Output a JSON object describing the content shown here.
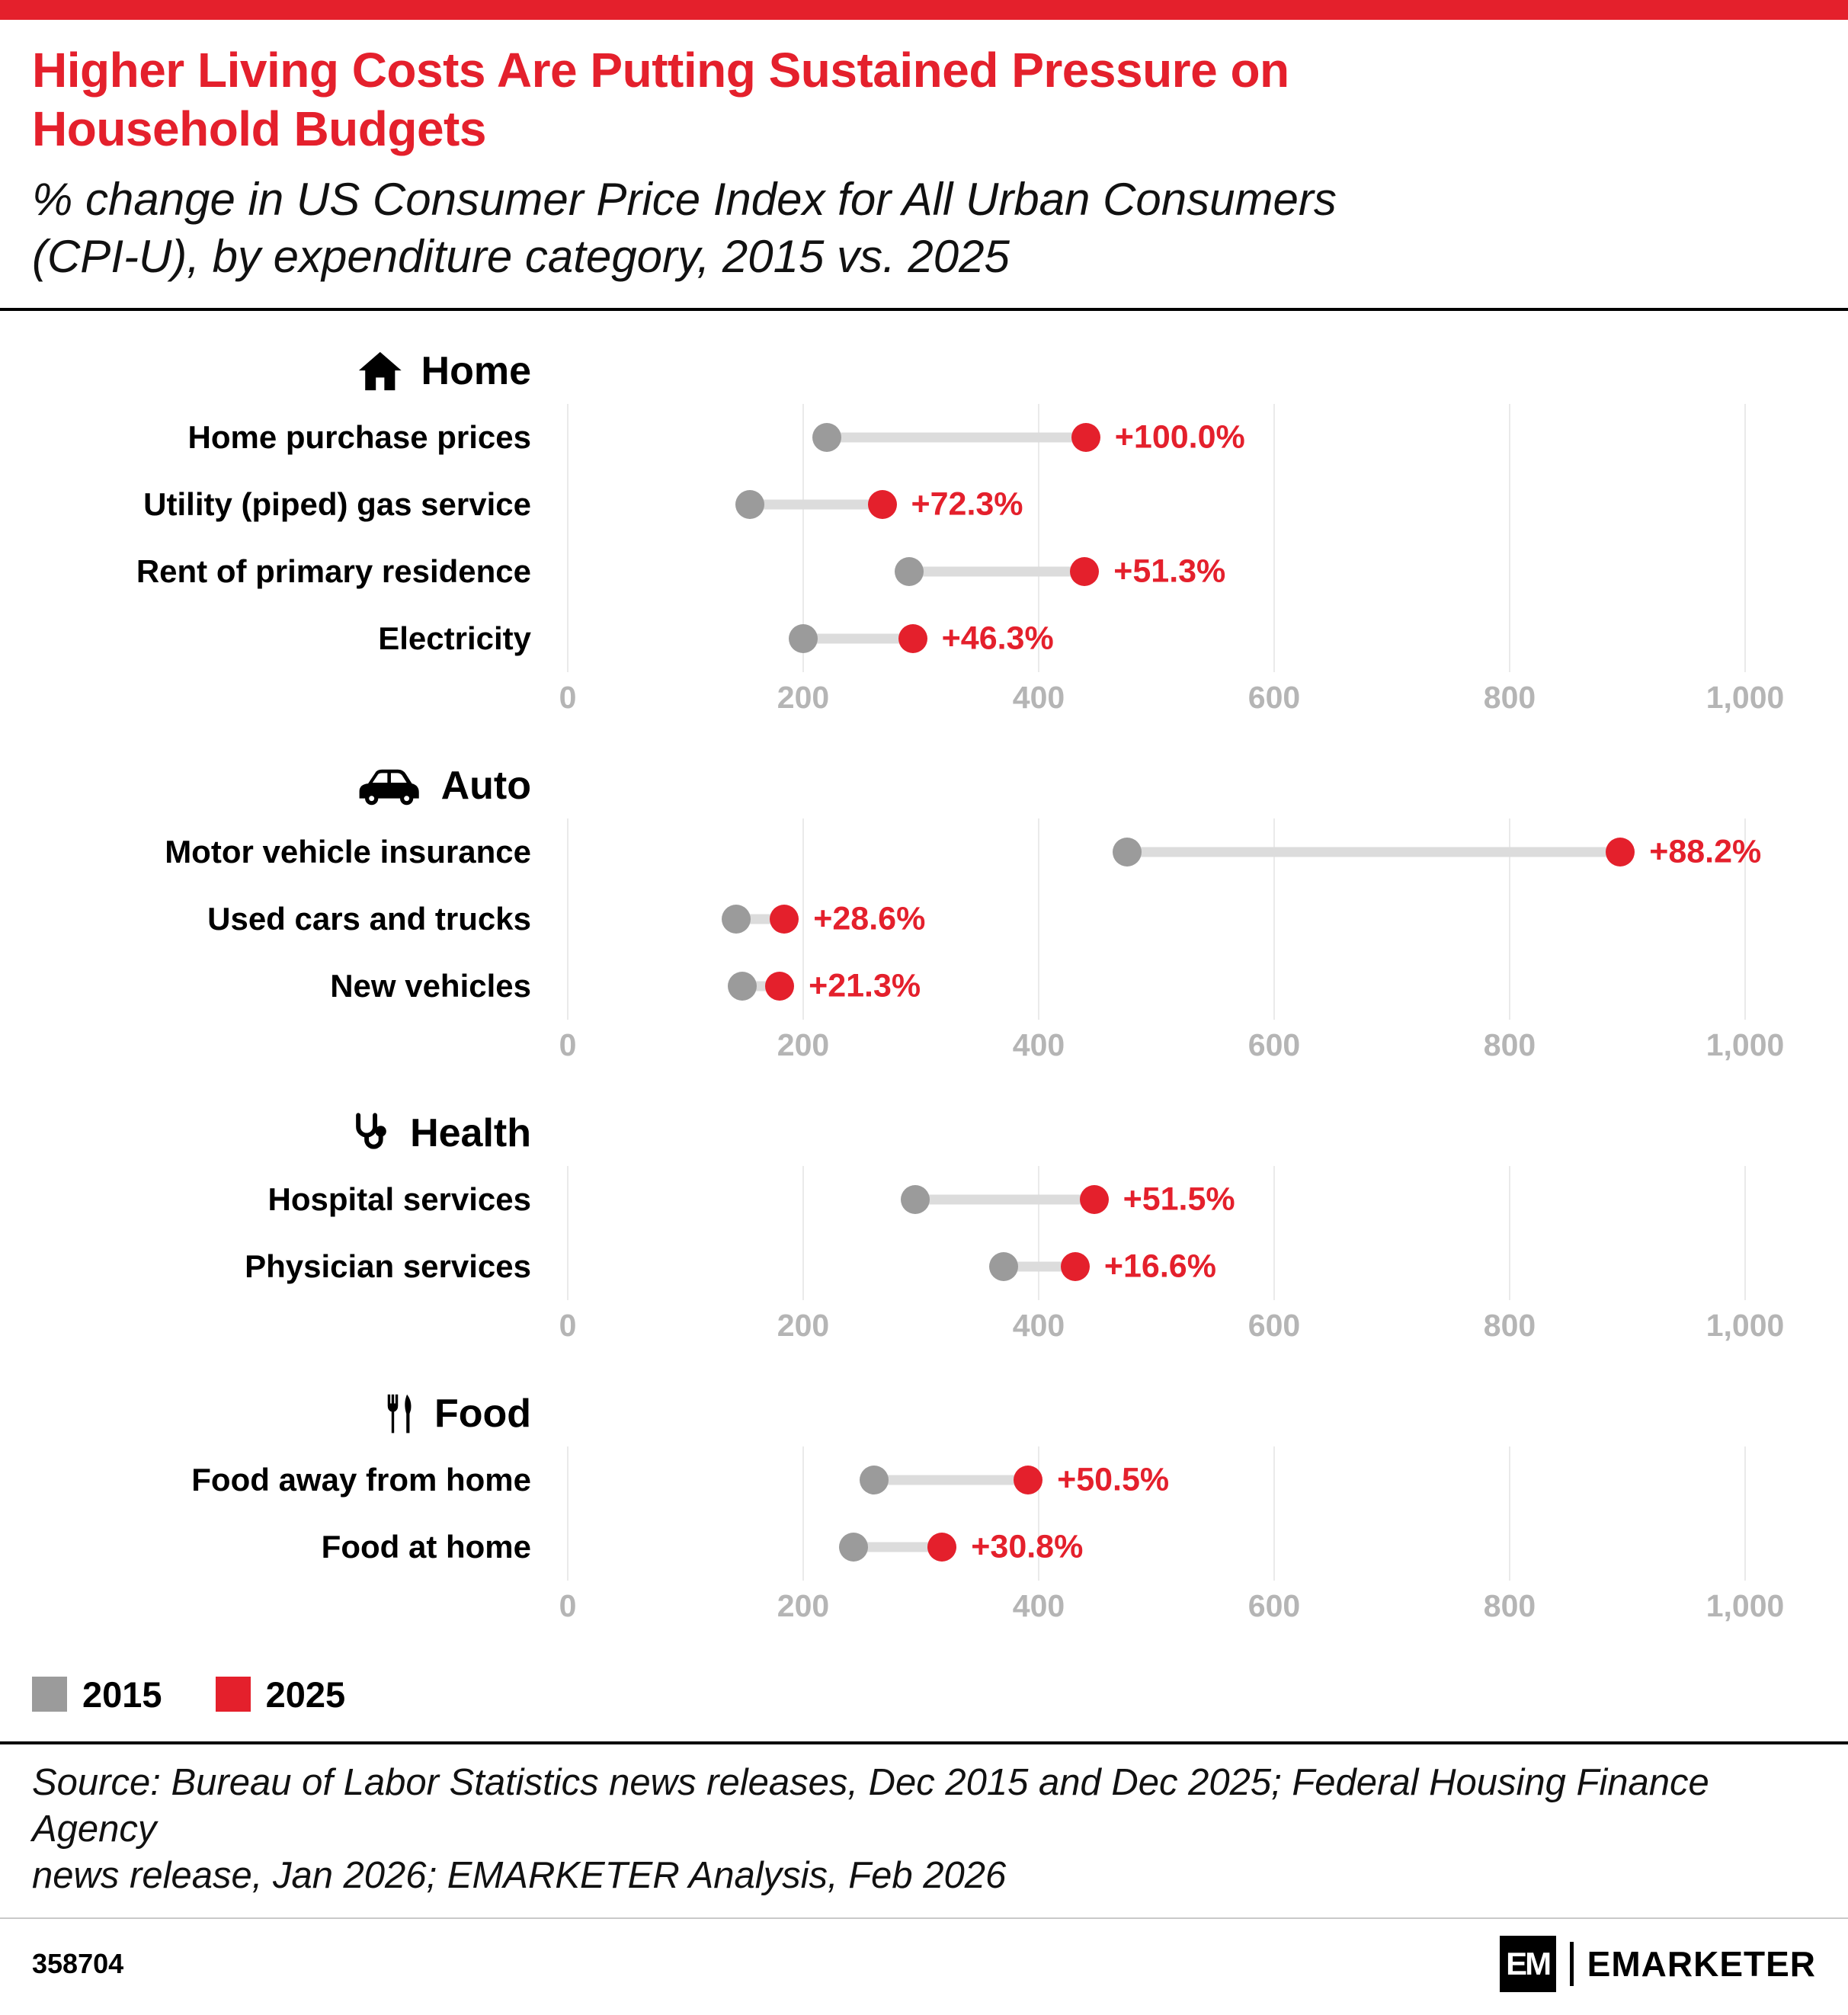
{
  "colors": {
    "red": "#E4202C",
    "gray": "#9B9B9B",
    "connector": "#DCDCDC",
    "gridline": "#EAEAEA",
    "axis_text": "#B5B5B5"
  },
  "header": {
    "title_line1": "Higher Living Costs Are Putting Sustained Pressure on",
    "title_line2": "Household Budgets",
    "subtitle_line1": "% change in US Consumer Price Index for All Urban Consumers",
    "subtitle_line2": "(CPI-U), by expenditure category, 2015 vs. 2025"
  },
  "chart_data": {
    "type": "dumbbell",
    "x_axis": {
      "min": 0,
      "max": 1000,
      "ticks": [
        "0",
        "200",
        "400",
        "600",
        "800",
        "1,000"
      ]
    },
    "series_labels": [
      "2015",
      "2025"
    ],
    "sections": [
      {
        "name": "Home",
        "icon": "home-icon",
        "rows": [
          {
            "label": "Home purchase prices",
            "v2015": 220,
            "v2025": 440,
            "change": "+100.0%"
          },
          {
            "label": "Utility (piped) gas service",
            "v2015": 155,
            "v2025": 267,
            "change": "+72.3%"
          },
          {
            "label": "Rent of primary residence",
            "v2015": 290,
            "v2025": 439,
            "change": "+51.3%"
          },
          {
            "label": "Electricity",
            "v2015": 200,
            "v2025": 293,
            "change": "+46.3%"
          }
        ]
      },
      {
        "name": "Auto",
        "icon": "car-icon",
        "rows": [
          {
            "label": "Motor vehicle insurance",
            "v2015": 475,
            "v2025": 894,
            "change": "+88.2%"
          },
          {
            "label": "Used cars and trucks",
            "v2015": 143,
            "v2025": 184,
            "change": "+28.6%"
          },
          {
            "label": "New vehicles",
            "v2015": 148,
            "v2025": 180,
            "change": "+21.3%"
          }
        ]
      },
      {
        "name": "Health",
        "icon": "stethoscope-icon",
        "rows": [
          {
            "label": "Hospital services",
            "v2015": 295,
            "v2025": 447,
            "change": "+51.5%"
          },
          {
            "label": "Physician services",
            "v2015": 370,
            "v2025": 431,
            "change": "+16.6%"
          }
        ]
      },
      {
        "name": "Food",
        "icon": "fork-knife-icon",
        "rows": [
          {
            "label": "Food away from home",
            "v2015": 260,
            "v2025": 391,
            "change": "+50.5%"
          },
          {
            "label": "Food at home",
            "v2015": 243,
            "v2025": 318,
            "change": "+30.8%"
          }
        ]
      }
    ]
  },
  "legend": [
    {
      "label": "2015",
      "color": "#9B9B9B"
    },
    {
      "label": "2025",
      "color": "#E4202C"
    }
  ],
  "source_line1": "Source: Bureau of Labor Statistics news releases, Dec 2015 and Dec 2025; Federal Housing Finance Agency",
  "source_line2": "news release, Jan 2026; EMARKETER Analysis, Feb 2026",
  "footer": {
    "chart_id": "358704",
    "brand_mark": "EM",
    "brand_name": "EMARKETER"
  }
}
